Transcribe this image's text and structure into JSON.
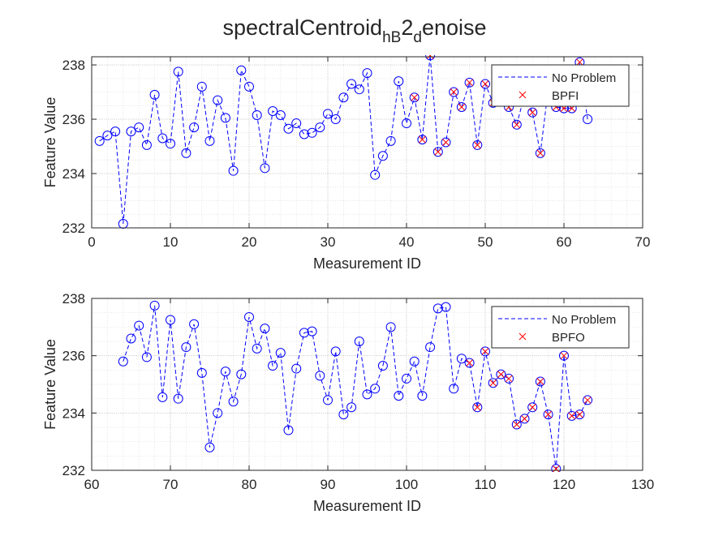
{
  "title": {
    "main": "spectralCentroid",
    "sub1": "hB",
    "mid": "2",
    "sub2": "d",
    "tail": "enoise"
  },
  "chart_data": [
    {
      "type": "line",
      "xlabel": "Measurement ID",
      "ylabel": "Feature Value",
      "xlim": [
        0,
        70
      ],
      "ylim": [
        232,
        238.3
      ],
      "xticks": [
        0,
        10,
        20,
        30,
        40,
        50,
        60,
        70
      ],
      "yticks": [
        232,
        234,
        236,
        238
      ],
      "grid": true,
      "minor_grid": true,
      "legend_position": "top-right",
      "colors": {
        "normal": "#0000ff",
        "fault": "#ff0000"
      },
      "series": [
        {
          "name": "No Problem",
          "style": "dashed-line-circle-markers",
          "x": [
            1,
            2,
            3,
            4,
            5,
            6,
            7,
            8,
            9,
            10,
            11,
            12,
            13,
            14,
            15,
            16,
            17,
            18,
            19,
            20,
            21,
            22,
            23,
            24,
            25,
            26,
            27,
            28,
            29,
            30,
            31,
            32,
            33,
            34,
            35,
            36,
            37,
            38,
            39,
            40,
            41,
            42,
            43,
            44,
            45,
            46,
            47,
            48,
            49,
            50,
            51,
            52,
            53,
            54,
            55,
            56,
            57,
            58,
            59,
            60,
            61,
            62,
            63
          ],
          "y": [
            235.2,
            235.4,
            235.55,
            232.15,
            235.55,
            235.7,
            235.05,
            236.9,
            235.3,
            235.1,
            237.75,
            234.75,
            235.7,
            237.2,
            235.2,
            236.7,
            236.05,
            234.1,
            237.8,
            237.2,
            236.15,
            234.2,
            236.3,
            236.15,
            235.65,
            235.85,
            235.45,
            235.5,
            235.7,
            236.2,
            236.0,
            236.8,
            237.3,
            237.1,
            237.7,
            233.95,
            234.65,
            235.2,
            237.4,
            235.85,
            236.8,
            235.25,
            238.35,
            234.8,
            235.15,
            237.0,
            236.45,
            237.35,
            235.05,
            237.3,
            236.6,
            237.0,
            236.45,
            235.8,
            236.9,
            236.25,
            234.75,
            237.1,
            236.45,
            236.4,
            236.4,
            238.1,
            236.0
          ]
        },
        {
          "name": "BPFI",
          "style": "x-markers",
          "x": [
            41,
            42,
            43,
            44,
            45,
            46,
            47,
            48,
            49,
            50,
            51,
            52,
            53,
            54,
            55,
            56,
            57,
            58,
            59,
            60,
            61,
            62
          ],
          "y": [
            236.8,
            235.25,
            238.35,
            234.8,
            235.15,
            237.0,
            236.45,
            237.35,
            235.05,
            237.3,
            236.6,
            237.0,
            236.45,
            235.8,
            236.9,
            236.25,
            234.75,
            237.1,
            236.45,
            236.4,
            236.4,
            238.1
          ]
        }
      ]
    },
    {
      "type": "line",
      "xlabel": "Measurement ID",
      "ylabel": "Feature Value",
      "xlim": [
        60,
        130
      ],
      "ylim": [
        232,
        238
      ],
      "xticks": [
        60,
        70,
        80,
        90,
        100,
        110,
        120,
        130
      ],
      "yticks": [
        232,
        234,
        236,
        238
      ],
      "grid": true,
      "minor_grid": true,
      "legend_position": "top-right",
      "colors": {
        "normal": "#0000ff",
        "fault": "#ff0000"
      },
      "series": [
        {
          "name": "No Problem",
          "style": "dashed-line-circle-markers",
          "x": [
            64,
            65,
            66,
            67,
            68,
            69,
            70,
            71,
            72,
            73,
            74,
            75,
            76,
            77,
            78,
            79,
            80,
            81,
            82,
            83,
            84,
            85,
            86,
            87,
            88,
            89,
            90,
            91,
            92,
            93,
            94,
            95,
            96,
            97,
            98,
            99,
            100,
            101,
            102,
            103,
            104,
            105,
            106,
            107,
            108,
            109,
            110,
            111,
            112,
            113,
            114,
            115,
            116,
            117,
            118,
            119,
            120,
            121,
            122,
            123
          ],
          "y": [
            235.8,
            236.6,
            237.05,
            235.95,
            237.75,
            234.55,
            237.25,
            234.5,
            236.3,
            237.1,
            235.4,
            232.8,
            234.0,
            235.45,
            234.4,
            235.35,
            237.35,
            236.25,
            236.95,
            235.65,
            236.1,
            233.4,
            235.55,
            236.8,
            236.85,
            235.3,
            234.45,
            236.15,
            233.95,
            234.2,
            236.5,
            234.65,
            234.85,
            235.65,
            237.0,
            234.6,
            235.2,
            235.8,
            234.6,
            236.3,
            237.65,
            237.7,
            234.85,
            235.9,
            235.75,
            234.2,
            236.15,
            235.05,
            235.35,
            235.2,
            233.6,
            233.8,
            234.2,
            235.1,
            233.95,
            232.05,
            236.0,
            233.9,
            233.95,
            234.45
          ]
        },
        {
          "name": "BPFO",
          "style": "x-markers",
          "x": [
            108,
            109,
            110,
            111,
            112,
            113,
            114,
            115,
            116,
            117,
            118,
            119,
            120,
            121,
            122,
            123
          ],
          "y": [
            235.75,
            234.2,
            236.15,
            235.05,
            235.35,
            235.2,
            233.6,
            233.8,
            234.2,
            235.1,
            233.95,
            232.05,
            236.0,
            233.9,
            233.95,
            234.45
          ]
        }
      ]
    }
  ]
}
